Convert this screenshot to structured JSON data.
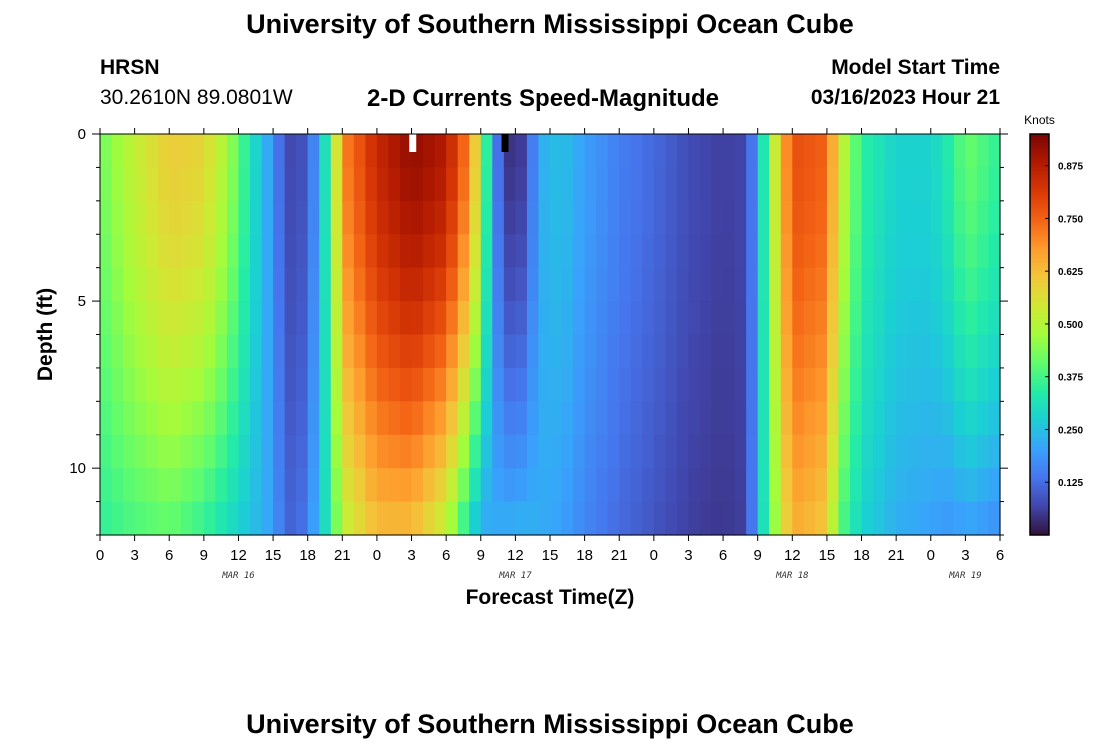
{
  "page": {
    "title": "University of Southern Mississippi Ocean Cube",
    "station_name": "HRSN",
    "station_coords": "30.2610N  89.0801W",
    "chart_title": "2-D Currents Speed-Magnitude",
    "model_start_label": "Model Start Time",
    "model_start_value": "03/16/2023 Hour 21",
    "footer_title": "University of Southern Mississippi Ocean Cube"
  },
  "chart_data": {
    "type": "heatmap",
    "title": "2-D Currents Speed-Magnitude",
    "xlabel": "Forecast Time(Z)",
    "ylabel": "Depth (ft)",
    "x_ticks": [
      "0",
      "3",
      "6",
      "9",
      "12",
      "15",
      "18",
      "21",
      "0",
      "3",
      "6",
      "9",
      "12",
      "15",
      "18",
      "21",
      "0",
      "3",
      "6",
      "9",
      "12",
      "15",
      "18",
      "21",
      "0",
      "3",
      "6"
    ],
    "date_labels": [
      {
        "text": "MAR 16",
        "hour": 12
      },
      {
        "text": "MAR 17",
        "hour": 36
      },
      {
        "text": "MAR 18",
        "hour": 60
      },
      {
        "text": "MAR 19",
        "hour": 75
      }
    ],
    "x_range_hours": [
      0,
      78
    ],
    "y_ticks": [
      "0",
      "5",
      "10"
    ],
    "y_tick_values": [
      0,
      5,
      10
    ],
    "ylim": [
      0,
      12
    ],
    "colorbar": {
      "label": "Knots",
      "min": 0,
      "max": 0.95,
      "ticks": [
        "0.125",
        "0.250",
        "0.375",
        "0.500",
        "0.625",
        "0.750",
        "0.875"
      ],
      "tick_values": [
        0.125,
        0.25,
        0.375,
        0.5,
        0.625,
        0.75,
        0.875
      ],
      "colormap": [
        "#30123b",
        "#4145ab",
        "#4675ed",
        "#39a2fc",
        "#1bcfd4",
        "#24eca6",
        "#61fc6c",
        "#a4fc3b",
        "#d1e834",
        "#f3c63a",
        "#fe9b2d",
        "#f36315",
        "#d93806",
        "#b11901",
        "#7a0402"
      ]
    },
    "depth_levels_ft": [
      0,
      1,
      2,
      3,
      4,
      5,
      6,
      7,
      8,
      9,
      10,
      11,
      12
    ],
    "surface_speed_knots_by_hour": [
      [
        0,
        0.42
      ],
      [
        3,
        0.52
      ],
      [
        6,
        0.6
      ],
      [
        9,
        0.58
      ],
      [
        11,
        0.48
      ],
      [
        13,
        0.32
      ],
      [
        15,
        0.18
      ],
      [
        16,
        0.08
      ],
      [
        17,
        0.07
      ],
      [
        18,
        0.1
      ],
      [
        19,
        0.22
      ],
      [
        20,
        0.4
      ],
      [
        21,
        0.7
      ],
      [
        24,
        0.85
      ],
      [
        27,
        0.92
      ],
      [
        30,
        0.88
      ],
      [
        32,
        0.7
      ],
      [
        33,
        0.5
      ],
      [
        34,
        0.2
      ],
      [
        35,
        0.06
      ],
      [
        36,
        0.03
      ],
      [
        37,
        0.08
      ],
      [
        38,
        0.22
      ],
      [
        40,
        0.25
      ],
      [
        42,
        0.2
      ],
      [
        45,
        0.15
      ],
      [
        48,
        0.12
      ],
      [
        51,
        0.08
      ],
      [
        54,
        0.06
      ],
      [
        56,
        0.07
      ],
      [
        57,
        0.2
      ],
      [
        58,
        0.45
      ],
      [
        60,
        0.78
      ],
      [
        63,
        0.75
      ],
      [
        64,
        0.55
      ],
      [
        66,
        0.35
      ],
      [
        69,
        0.28
      ],
      [
        72,
        0.28
      ],
      [
        74,
        0.35
      ],
      [
        75,
        0.42
      ],
      [
        78,
        0.35
      ]
    ],
    "bottom_speed_knots_by_hour": [
      [
        0,
        0.35
      ],
      [
        3,
        0.38
      ],
      [
        6,
        0.4
      ],
      [
        9,
        0.35
      ],
      [
        11,
        0.3
      ],
      [
        13,
        0.25
      ],
      [
        15,
        0.2
      ],
      [
        16,
        0.12
      ],
      [
        17,
        0.11
      ],
      [
        18,
        0.15
      ],
      [
        19,
        0.25
      ],
      [
        20,
        0.35
      ],
      [
        21,
        0.5
      ],
      [
        24,
        0.62
      ],
      [
        27,
        0.62
      ],
      [
        30,
        0.5
      ],
      [
        32,
        0.3
      ],
      [
        33,
        0.2
      ],
      [
        34,
        0.22
      ],
      [
        35,
        0.22
      ],
      [
        36,
        0.23
      ],
      [
        37,
        0.23
      ],
      [
        38,
        0.22
      ],
      [
        40,
        0.2
      ],
      [
        42,
        0.16
      ],
      [
        45,
        0.12
      ],
      [
        48,
        0.09
      ],
      [
        51,
        0.06
      ],
      [
        54,
        0.05
      ],
      [
        56,
        0.06
      ],
      [
        57,
        0.22
      ],
      [
        58,
        0.4
      ],
      [
        60,
        0.65
      ],
      [
        63,
        0.6
      ],
      [
        64,
        0.4
      ],
      [
        66,
        0.28
      ],
      [
        69,
        0.22
      ],
      [
        72,
        0.2
      ],
      [
        74,
        0.18
      ],
      [
        75,
        0.2
      ],
      [
        78,
        0.17
      ]
    ]
  }
}
